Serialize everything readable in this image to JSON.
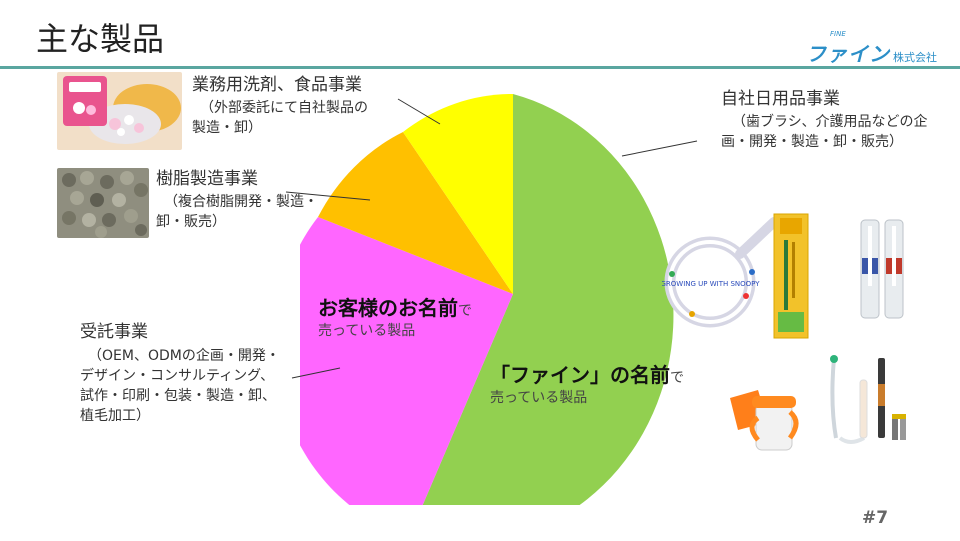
{
  "header": {
    "title": "主な製品",
    "logo_main": "ファイン",
    "logo_kk": "株式会社",
    "logo_tm": "FINE"
  },
  "segments": {
    "own_products": {
      "title": "自社日用品事業",
      "desc_1": "（歯ブラシ、介護用品などの企",
      "desc_2": "画・開発・製造・卸・販売）"
    },
    "detergent_food": {
      "title": "業務用洗剤、食品事業",
      "desc_1": "（外部委託にて自社製品の",
      "desc_2": "製造・卸）"
    },
    "resin": {
      "title": "樹脂製造事業",
      "desc_1": "（複合樹脂開発・製造・",
      "desc_2": "卸・販売）"
    },
    "contract": {
      "title": "受託事業",
      "desc_1": "（OEM、ODMの企画・開発・",
      "desc_2": "デザイン・コンサルティング、",
      "desc_3": "試作・印刷・包装・製造・卸、",
      "desc_4": "植毛加工）"
    }
  },
  "pie_labels": {
    "client_name_big": "お客様のお名前",
    "client_name_de": "で",
    "client_name_small": "売っている製品",
    "fine_name_big": "「ファイン」の名前",
    "fine_name_de": "で",
    "fine_name_small": "売っている製品"
  },
  "product_text": {
    "ring": "GROWING UP WITH SNOOPY"
  },
  "colors": {
    "green": "#92d050",
    "magenta": "#ff66ff",
    "orange": "#ffc000",
    "yellow": "#ffff00",
    "accent_line": "#5aa6a0",
    "brand": "#2c8fc8"
  },
  "footer": {
    "page_number": "#7"
  }
}
